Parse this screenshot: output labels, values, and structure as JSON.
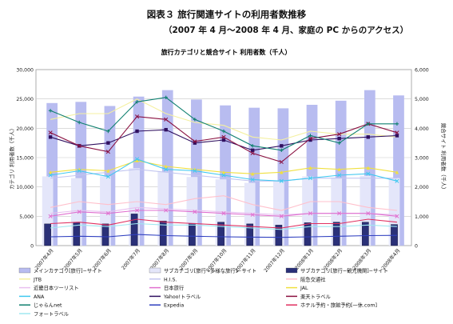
{
  "figure_title": "図表３ 旅行関連サイトの利用者数推移",
  "figure_subtitle": "（2007 年 4 月〜2008 年 4 月、家庭の PC からのアクセス）",
  "chart_data": {
    "type": "bar",
    "title": "旅行カテゴリと競合サイト 利用者数（千人）",
    "categories": [
      "2007年4月",
      "2007年5月",
      "2007年6月",
      "2007年7月",
      "2007年8月",
      "2007年9月",
      "2007年10月",
      "2007年11月",
      "2007年12月",
      "2008年1月",
      "2008年2月",
      "2008年3月",
      "2008年4月"
    ],
    "ylabel_left": "カテゴリ 利用者数（千人）",
    "ylabel_right": "競合サイト 利用者数（千人）",
    "ylim_left": [
      0,
      30000
    ],
    "ylim_right": [
      0,
      6000
    ],
    "yticks_left": [
      "0",
      "5,000",
      "10,000",
      "15,000",
      "20,000",
      "25,000",
      "30,000"
    ],
    "yticks_right": [
      "0",
      "1,000",
      "2,000",
      "3,000",
      "4,000",
      "5,000",
      "6,000"
    ],
    "grid": true,
    "legend_position": "bottom",
    "bar_series": [
      {
        "name": "メインカテゴリ[旅行]−サイト",
        "axis": "left",
        "color": "#b8bcf0",
        "values": [
          24300,
          24500,
          23800,
          25400,
          26500,
          24900,
          23900,
          23500,
          23400,
          24000,
          24700,
          26500,
          25600
        ]
      },
      {
        "name": "サブカテゴリ[旅行−多様な旅行]−サイト",
        "axis": "left",
        "color": "#e4e6fa",
        "values": [
          11800,
          11500,
          11800,
          13200,
          12600,
          11700,
          11300,
          10700,
          11000,
          11800,
          11500,
          11900,
          11500
        ]
      },
      {
        "name": "サブカテゴリ[旅行−観光機関]−サイト",
        "axis": "left",
        "color": "#2a3078",
        "values": [
          3700,
          4000,
          3700,
          5400,
          4200,
          3800,
          4000,
          3700,
          3500,
          3900,
          4000,
          4000,
          3600
        ]
      }
    ],
    "line_series": [
      {
        "name": "JTB",
        "axis": "right",
        "color": "#f4f0a0",
        "marker": "none",
        "values": [
          4300,
          4500,
          4500,
          5000,
          4500,
          4200,
          4100,
          3700,
          3600,
          3900,
          3800,
          3800,
          3700
        ]
      },
      {
        "name": "H.I.S.",
        "axis": "right",
        "color": "#c3c6f0",
        "marker": "none",
        "values": [
          2300,
          2400,
          2500,
          2600,
          2500,
          2400,
          2300,
          2200,
          2200,
          2300,
          2300,
          2300,
          2300
        ]
      },
      {
        "name": "阪急交通社",
        "axis": "right",
        "color": "#ffc0cc",
        "marker": "none",
        "values": [
          1300,
          1500,
          1400,
          1500,
          1400,
          1600,
          1700,
          1400,
          1200,
          1500,
          1500,
          1300,
          1200
        ]
      },
      {
        "name": "近畿日本ツーリスト",
        "axis": "right",
        "color": "#e8c0f0",
        "marker": "none",
        "values": [
          1100,
          1200,
          1150,
          1300,
          1250,
          1200,
          1150,
          1100,
          1050,
          1100,
          1100,
          1100,
          1050
        ]
      },
      {
        "name": "日本旅行",
        "axis": "right",
        "color": "#e070d0",
        "marker": "x",
        "values": [
          1000,
          1150,
          1100,
          1200,
          1200,
          1150,
          1100,
          1050,
          1000,
          1100,
          1100,
          1100,
          1000
        ]
      },
      {
        "name": "JAL",
        "axis": "right",
        "color": "#f0e040",
        "marker": "triangle",
        "values": [
          2500,
          2600,
          2550,
          2900,
          2700,
          2600,
          2500,
          2450,
          2500,
          2650,
          2600,
          2650,
          2500
        ]
      },
      {
        "name": "ANA",
        "axis": "right",
        "color": "#40c8f0",
        "marker": "x",
        "values": [
          2400,
          2550,
          2350,
          2950,
          2600,
          2550,
          2400,
          2250,
          2200,
          2300,
          2400,
          2450,
          2200
        ]
      },
      {
        "name": "Yahoo!トラベル",
        "axis": "right",
        "color": "#301060",
        "marker": "square",
        "values": [
          3700,
          3400,
          3500,
          3900,
          3950,
          3500,
          3600,
          3250,
          3400,
          3600,
          3650,
          3700,
          3750
        ]
      },
      {
        "name": "楽天トラベル",
        "axis": "right",
        "color": "#8a1040",
        "marker": "x",
        "values": [
          3850,
          3400,
          3200,
          4400,
          4300,
          3550,
          3700,
          3150,
          2850,
          3650,
          3800,
          4150,
          3850
        ]
      },
      {
        "name": "じゃらんnet",
        "axis": "right",
        "color": "#108070",
        "marker": "plus",
        "values": [
          4600,
          4200,
          3900,
          4900,
          5050,
          4300,
          3900,
          3400,
          3250,
          3750,
          3500,
          4150,
          4150
        ]
      },
      {
        "name": "Expedia",
        "axis": "right",
        "color": "#3040c0",
        "marker": "none",
        "values": [
          300,
          320,
          300,
          380,
          340,
          320,
          300,
          290,
          280,
          300,
          320,
          340,
          350
        ]
      },
      {
        "name": "ホテル予約・旅館予約[一休.com]",
        "axis": "right",
        "color": "#e03060",
        "marker": "none",
        "values": [
          750,
          800,
          700,
          900,
          800,
          750,
          700,
          650,
          600,
          750,
          750,
          900,
          800
        ]
      },
      {
        "name": "フォートラベル",
        "axis": "right",
        "color": "#a0e8f0",
        "marker": "none",
        "values": [
          600,
          700,
          650,
          750,
          700,
          700,
          650,
          600,
          550,
          650,
          650,
          700,
          650
        ]
      }
    ]
  }
}
